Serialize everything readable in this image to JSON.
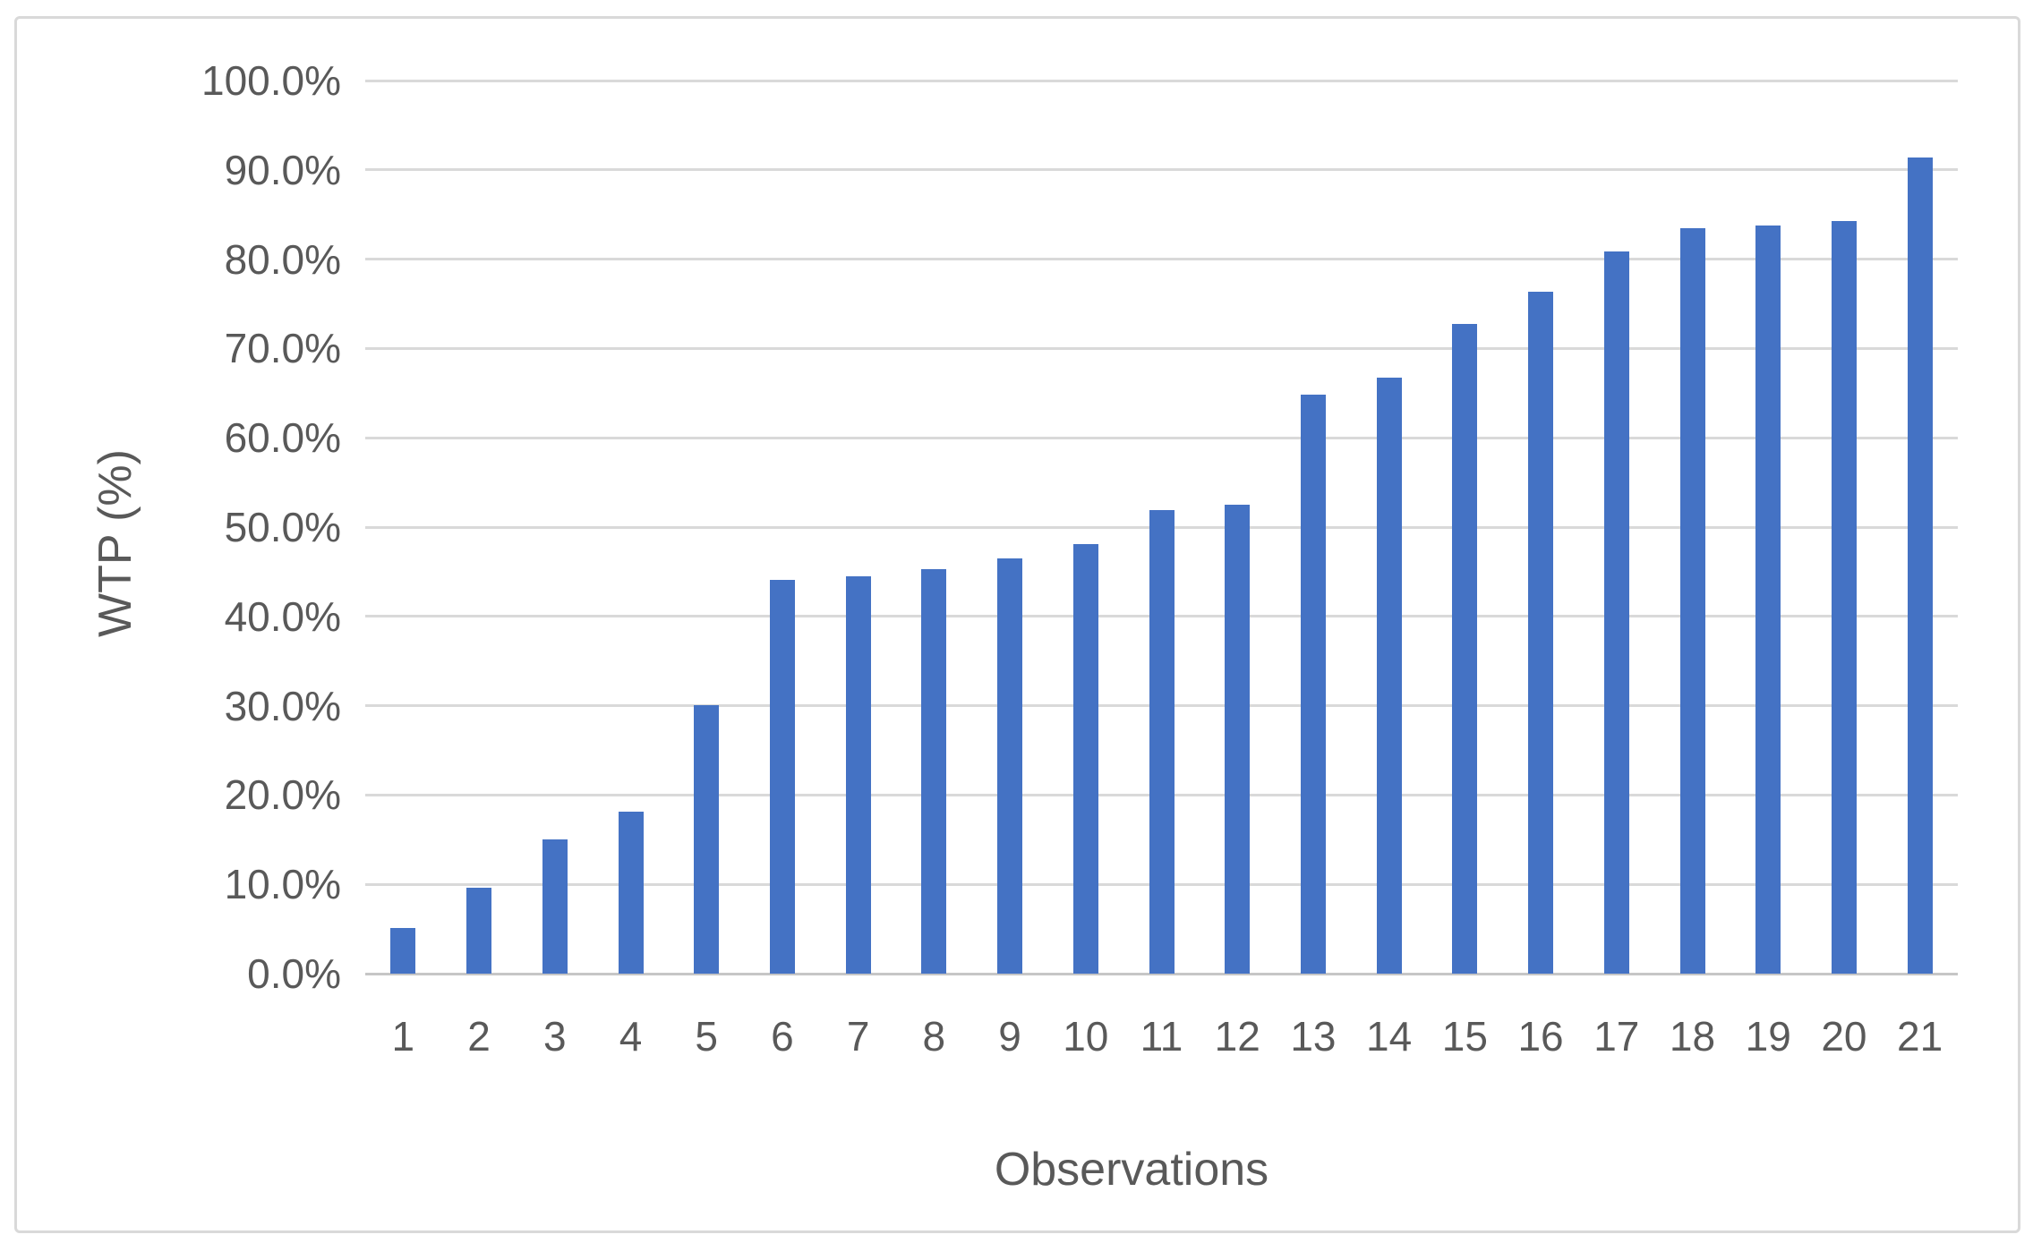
{
  "chart_data": {
    "type": "bar",
    "title": "",
    "xlabel": "Observations",
    "ylabel": "WTP (%)",
    "categories": [
      "1",
      "2",
      "3",
      "4",
      "5",
      "6",
      "7",
      "8",
      "9",
      "10",
      "11",
      "12",
      "13",
      "14",
      "15",
      "16",
      "17",
      "18",
      "19",
      "20",
      "21"
    ],
    "values": [
      5.1,
      9.6,
      15.0,
      18.1,
      30.1,
      44.1,
      44.5,
      45.3,
      46.5,
      48.1,
      51.9,
      52.5,
      64.8,
      66.7,
      72.7,
      76.4,
      80.9,
      83.5,
      83.8,
      84.3,
      91.4
    ],
    "series_name": "WTP",
    "ylim": [
      0,
      100
    ],
    "y_tick_labels": [
      "0.0%",
      "10.0%",
      "20.0%",
      "30.0%",
      "40.0%",
      "50.0%",
      "60.0%",
      "70.0%",
      "80.0%",
      "90.0%",
      "100.0%"
    ],
    "y_tick_step_percent": 10,
    "grid": "horizontal-on",
    "legend": "none",
    "bar_color": "#4472C4",
    "gridline_color": "#D9D9D9",
    "axis_line_color": "#C6C6C6",
    "text_color": "#595959",
    "chart_border_color": "#D9D9D9",
    "background_color": "#FFFFFF"
  }
}
